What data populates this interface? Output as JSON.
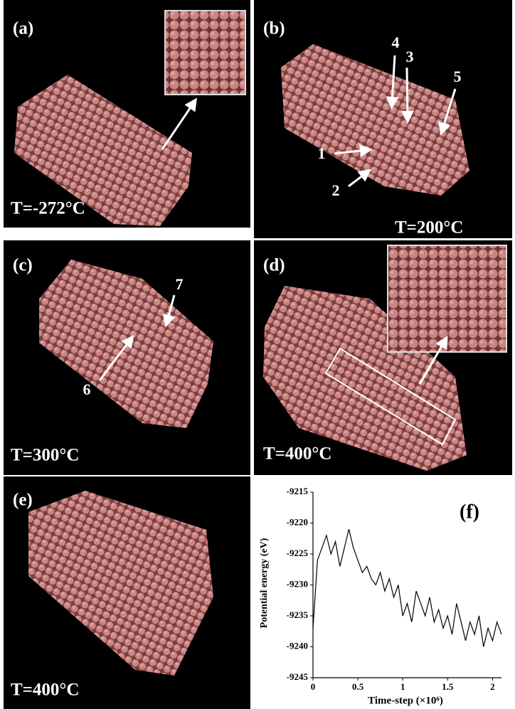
{
  "panels": [
    {
      "label": "(a)",
      "temperature": "T=-272°C"
    },
    {
      "label": "(b)",
      "temperature": "T=200°C",
      "markers": [
        "1",
        "2",
        "3",
        "4",
        "5"
      ]
    },
    {
      "label": "(c)",
      "temperature": "T=300°C",
      "markers": [
        "6",
        "7"
      ]
    },
    {
      "label": "(d)",
      "temperature": "T=400°C"
    },
    {
      "label": "(e)",
      "temperature": "T=400°C"
    }
  ],
  "chart_data": {
    "type": "line",
    "label": "(f)",
    "x_label": "Time-step (×10⁶)",
    "y_label": "Potential energy (eV)",
    "color": "#000000",
    "x": [
      0,
      0.05,
      0.1,
      0.15,
      0.2,
      0.25,
      0.3,
      0.35,
      0.4,
      0.45,
      0.5,
      0.55,
      0.6,
      0.65,
      0.7,
      0.75,
      0.8,
      0.85,
      0.9,
      0.95,
      1,
      1.05,
      1.1,
      1.15,
      1.2,
      1.25,
      1.3,
      1.35,
      1.4,
      1.45,
      1.5,
      1.55,
      1.6,
      1.65,
      1.7,
      1.75,
      1.8,
      1.85,
      1.9,
      1.95,
      2,
      2.05,
      2.1
    ],
    "values": [
      -9237,
      -9226,
      -9224,
      -9222,
      -9225,
      -9223,
      -9227,
      -9224,
      -9221,
      -9224,
      -9226,
      -9228,
      -9227,
      -9229,
      -9230,
      -9228,
      -9231,
      -9229,
      -9232,
      -9230,
      -9235,
      -9233,
      -9236,
      -9231,
      -9233,
      -9235,
      -9232,
      -9236,
      -9234,
      -9237,
      -9235,
      -9238,
      -9233,
      -9236,
      -9239,
      -9236,
      -9238,
      -9235,
      -9240,
      -9237,
      -9239,
      -9236,
      -9238
    ],
    "xlim": [
      0,
      2.1
    ],
    "xticks": [
      0,
      0.5,
      1,
      1.5,
      2
    ],
    "ylim": [
      -9245,
      -9215
    ],
    "yticks": [
      -9245,
      -9240,
      -9235,
      -9230,
      -9225,
      -9220,
      -9215
    ]
  }
}
